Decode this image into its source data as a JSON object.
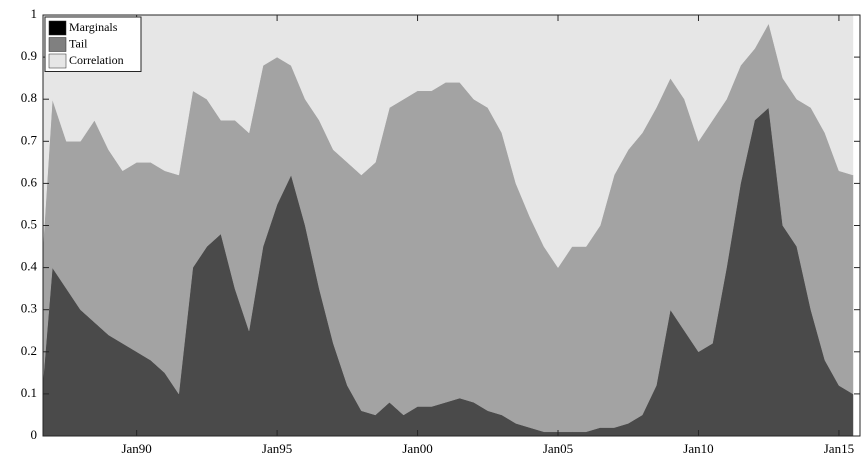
{
  "chart_data": {
    "type": "stacked_area",
    "x": [
      "1986-09",
      "1987-01",
      "1987-07",
      "1988-01",
      "1988-07",
      "1989-01",
      "1989-07",
      "1990-01",
      "1990-07",
      "1991-01",
      "1991-07",
      "1992-01",
      "1992-07",
      "1993-01",
      "1993-07",
      "1994-01",
      "1994-07",
      "1995-01",
      "1995-07",
      "1996-01",
      "1996-07",
      "1997-01",
      "1997-07",
      "1998-01",
      "1998-07",
      "1999-01",
      "1999-07",
      "2000-01",
      "2000-07",
      "2001-01",
      "2001-07",
      "2002-01",
      "2002-07",
      "2003-01",
      "2003-07",
      "2004-01",
      "2004-07",
      "2005-01",
      "2005-07",
      "2006-01",
      "2006-07",
      "2007-01",
      "2007-07",
      "2008-01",
      "2008-07",
      "2009-01",
      "2009-07",
      "2010-01",
      "2010-07",
      "2011-01",
      "2011-07",
      "2012-01",
      "2012-07",
      "2013-01",
      "2013-07",
      "2014-01",
      "2014-07",
      "2015-01",
      "2015-07"
    ],
    "series": [
      {
        "name": "Marginals",
        "color": "#4a4a4a",
        "legend_color": "#000000",
        "values": [
          0.13,
          0.4,
          0.35,
          0.3,
          0.27,
          0.24,
          0.22,
          0.2,
          0.18,
          0.15,
          0.1,
          0.4,
          0.45,
          0.48,
          0.35,
          0.25,
          0.45,
          0.55,
          0.62,
          0.5,
          0.35,
          0.22,
          0.12,
          0.06,
          0.05,
          0.08,
          0.05,
          0.07,
          0.07,
          0.08,
          0.09,
          0.08,
          0.06,
          0.05,
          0.03,
          0.02,
          0.01,
          0.01,
          0.01,
          0.01,
          0.02,
          0.02,
          0.03,
          0.05,
          0.12,
          0.3,
          0.25,
          0.2,
          0.22,
          0.4,
          0.6,
          0.75,
          0.78,
          0.5,
          0.45,
          0.3,
          0.18,
          0.12,
          0.1
        ]
      },
      {
        "name": "Tail",
        "color": "#a3a3a3",
        "legend_color": "#808080",
        "values": [
          0.32,
          0.4,
          0.35,
          0.4,
          0.48,
          0.44,
          0.41,
          0.45,
          0.47,
          0.48,
          0.52,
          0.42,
          0.35,
          0.27,
          0.4,
          0.47,
          0.43,
          0.35,
          0.26,
          0.3,
          0.4,
          0.46,
          0.53,
          0.56,
          0.6,
          0.7,
          0.75,
          0.75,
          0.75,
          0.76,
          0.75,
          0.72,
          0.72,
          0.67,
          0.57,
          0.5,
          0.44,
          0.39,
          0.44,
          0.44,
          0.48,
          0.6,
          0.65,
          0.67,
          0.66,
          0.55,
          0.55,
          0.5,
          0.53,
          0.4,
          0.28,
          0.17,
          0.2,
          0.35,
          0.35,
          0.48,
          0.54,
          0.51,
          0.52
        ]
      },
      {
        "name": "Correlation",
        "color": "#e6e6e6",
        "legend_color": "#e6e6e6",
        "values": [
          0.55,
          0.2,
          0.3,
          0.3,
          0.25,
          0.32,
          0.37,
          0.35,
          0.35,
          0.37,
          0.38,
          0.18,
          0.2,
          0.25,
          0.25,
          0.28,
          0.12,
          0.1,
          0.12,
          0.2,
          0.25,
          0.32,
          0.35,
          0.38,
          0.35,
          0.22,
          0.2,
          0.18,
          0.18,
          0.16,
          0.16,
          0.2,
          0.22,
          0.28,
          0.4,
          0.48,
          0.55,
          0.6,
          0.55,
          0.55,
          0.5,
          0.38,
          0.32,
          0.28,
          0.22,
          0.15,
          0.2,
          0.3,
          0.25,
          0.2,
          0.12,
          0.08,
          0.02,
          0.15,
          0.2,
          0.22,
          0.28,
          0.37,
          0.38
        ]
      }
    ],
    "xlim": [
      "1986-09",
      "2015-10"
    ],
    "xticks": [
      {
        "value": "1990-01",
        "label": "Jan90"
      },
      {
        "value": "1995-01",
        "label": "Jan95"
      },
      {
        "value": "2000-01",
        "label": "Jan00"
      },
      {
        "value": "2005-01",
        "label": "Jan05"
      },
      {
        "value": "2010-01",
        "label": "Jan10"
      },
      {
        "value": "2015-01",
        "label": "Jan15"
      }
    ],
    "ylim": [
      0,
      1
    ],
    "yticks": [
      0,
      0.1,
      0.2,
      0.3,
      0.4,
      0.5,
      0.6,
      0.7,
      0.8,
      0.9,
      1
    ],
    "legend": "top-left"
  }
}
